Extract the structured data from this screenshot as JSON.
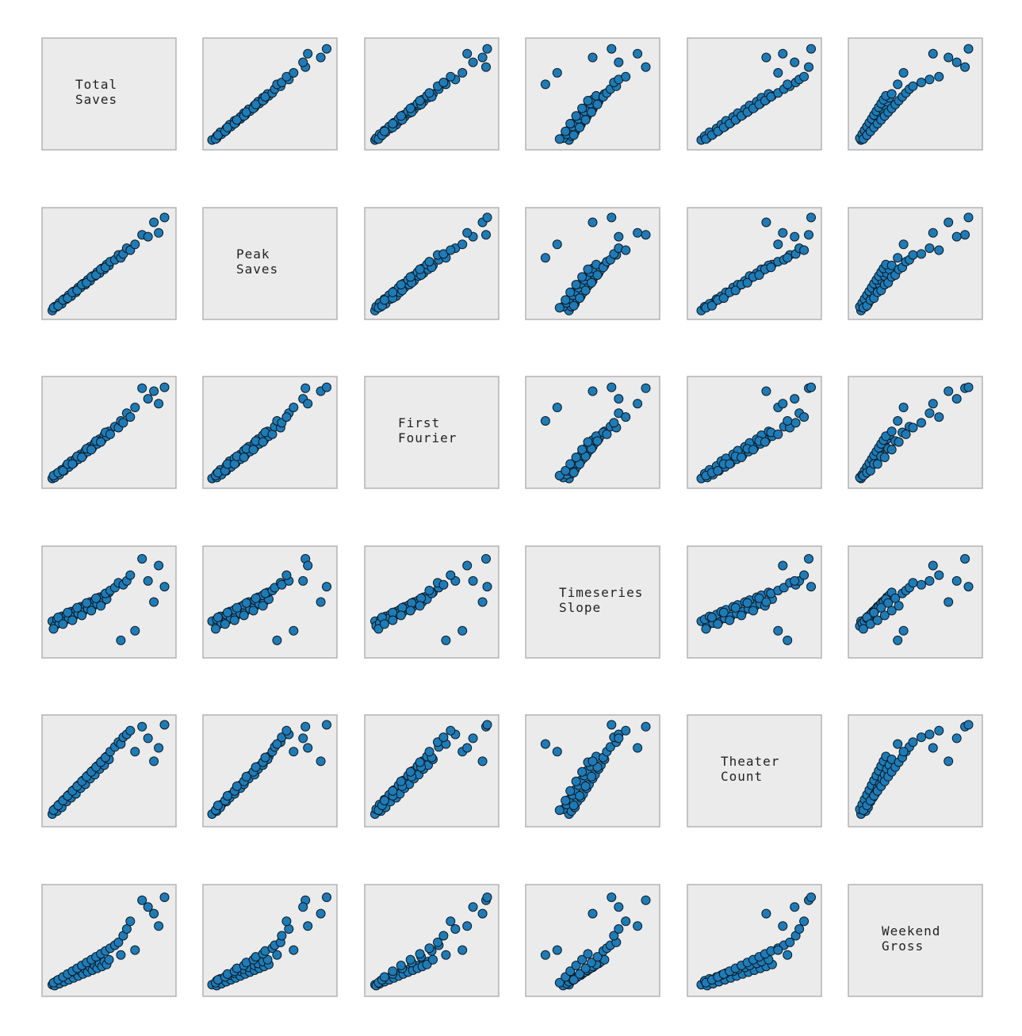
{
  "chart_data": {
    "type": "scatter",
    "variables": [
      "Total Saves",
      "Peak Saves",
      "First Fourier",
      "Timeseries Slope",
      "Theater Count",
      "Weekend Gross"
    ],
    "diagonal_labels": [
      [
        "Total",
        "Saves"
      ],
      [
        "Peak",
        "Saves"
      ],
      [
        "First",
        "Fourier"
      ],
      [
        "Timeseries",
        "Slope"
      ],
      [
        "Theater",
        "Count"
      ],
      [
        "Weekend",
        "Gross"
      ]
    ],
    "axis_ticks": "none",
    "grid": false,
    "legend": "none",
    "marker_color": "#1f7bb6",
    "marker_edge_color": "#0b1a26",
    "panel_color": "#ebebeb",
    "n_points": 50,
    "values": {
      "Total Saves": [
        0.02,
        0.04,
        0.06,
        0.08,
        0.1,
        0.12,
        0.14,
        0.16,
        0.18,
        0.2,
        0.22,
        0.24,
        0.26,
        0.28,
        0.3,
        0.32,
        0.34,
        0.36,
        0.38,
        0.4,
        0.42,
        0.44,
        0.46,
        0.48,
        0.5,
        0.03,
        0.07,
        0.11,
        0.15,
        0.19,
        0.23,
        0.27,
        0.31,
        0.35,
        0.39,
        0.43,
        0.47,
        0.51,
        0.55,
        0.58,
        0.6,
        0.62,
        0.65,
        0.68,
        0.72,
        0.78,
        0.83,
        0.88,
        0.92,
        0.97
      ],
      "Peak Saves": [
        0.01,
        0.05,
        0.05,
        0.09,
        0.08,
        0.13,
        0.13,
        0.17,
        0.16,
        0.21,
        0.2,
        0.25,
        0.25,
        0.29,
        0.28,
        0.33,
        0.32,
        0.37,
        0.37,
        0.41,
        0.4,
        0.45,
        0.44,
        0.49,
        0.48,
        0.04,
        0.06,
        0.12,
        0.14,
        0.2,
        0.22,
        0.28,
        0.3,
        0.36,
        0.38,
        0.44,
        0.46,
        0.52,
        0.54,
        0.59,
        0.56,
        0.6,
        0.66,
        0.64,
        0.7,
        0.8,
        0.78,
        0.93,
        0.82,
        0.98
      ],
      "First Fourier": [
        0.02,
        0.03,
        0.07,
        0.06,
        0.11,
        0.1,
        0.15,
        0.14,
        0.2,
        0.18,
        0.23,
        0.22,
        0.27,
        0.26,
        0.31,
        0.3,
        0.35,
        0.34,
        0.39,
        0.38,
        0.43,
        0.42,
        0.47,
        0.46,
        0.51,
        0.05,
        0.08,
        0.1,
        0.17,
        0.17,
        0.25,
        0.24,
        0.33,
        0.32,
        0.41,
        0.4,
        0.5,
        0.48,
        0.56,
        0.55,
        0.62,
        0.6,
        0.7,
        0.66,
        0.76,
        0.96,
        0.85,
        0.93,
        0.8,
        0.97
      ],
      "Timeseries Slope": [
        0.3,
        0.25,
        0.32,
        0.28,
        0.35,
        0.3,
        0.37,
        0.33,
        0.4,
        0.35,
        0.42,
        0.38,
        0.45,
        0.4,
        0.47,
        0.43,
        0.5,
        0.45,
        0.52,
        0.48,
        0.55,
        0.5,
        0.57,
        0.53,
        0.6,
        0.22,
        0.34,
        0.27,
        0.39,
        0.31,
        0.44,
        0.36,
        0.49,
        0.41,
        0.54,
        0.46,
        0.59,
        0.62,
        0.65,
        0.7,
        0.1,
        0.68,
        0.72,
        0.78,
        0.2,
        0.95,
        0.72,
        0.5,
        0.88,
        0.66
      ],
      "Theater Count": [
        0.05,
        0.1,
        0.08,
        0.15,
        0.12,
        0.2,
        0.18,
        0.25,
        0.22,
        0.3,
        0.26,
        0.35,
        0.32,
        0.4,
        0.36,
        0.45,
        0.42,
        0.5,
        0.46,
        0.55,
        0.52,
        0.6,
        0.56,
        0.65,
        0.62,
        0.09,
        0.14,
        0.19,
        0.24,
        0.29,
        0.34,
        0.39,
        0.44,
        0.49,
        0.54,
        0.59,
        0.64,
        0.7,
        0.75,
        0.8,
        0.78,
        0.85,
        0.88,
        0.92,
        0.7,
        0.96,
        0.84,
        0.6,
        0.74,
        0.98
      ],
      "Weekend Gross": [
        0.04,
        0.03,
        0.08,
        0.05,
        0.1,
        0.07,
        0.12,
        0.09,
        0.14,
        0.11,
        0.16,
        0.13,
        0.18,
        0.15,
        0.2,
        0.17,
        0.22,
        0.19,
        0.24,
        0.21,
        0.26,
        0.23,
        0.28,
        0.25,
        0.3,
        0.06,
        0.09,
        0.12,
        0.15,
        0.18,
        0.21,
        0.24,
        0.27,
        0.3,
        0.33,
        0.36,
        0.39,
        0.42,
        0.45,
        0.48,
        0.35,
        0.55,
        0.62,
        0.7,
        0.4,
        0.92,
        0.85,
        0.78,
        0.65,
        0.95
      ]
    }
  }
}
